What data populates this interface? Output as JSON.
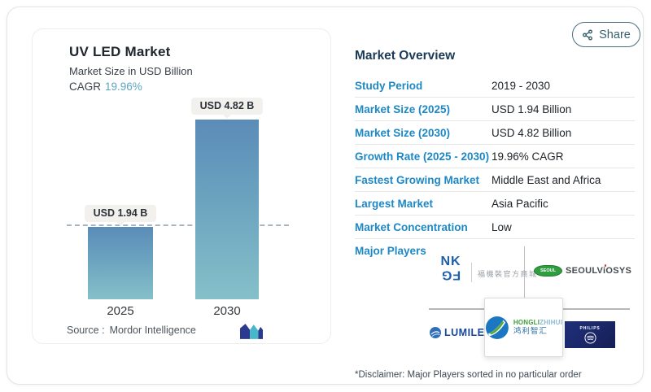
{
  "share": {
    "label": "Share"
  },
  "chart_card": {
    "title": "UV LED Market",
    "subtitle": "Market Size in USD Billion",
    "cagr_label": "CAGR",
    "cagr_value": "19.96%",
    "source_label": "Source :",
    "source_value": "Mordor Intelligence"
  },
  "chart_data": {
    "type": "bar",
    "title": "UV LED Market",
    "subtitle": "Market Size in USD Billion",
    "unit": "USD Billion",
    "categories": [
      "2025",
      "2030"
    ],
    "values": [
      1.94,
      4.82
    ],
    "bar_labels": [
      "USD 1.94 B",
      "USD 4.82 B"
    ],
    "reference_line_value": 1.94,
    "ylim": [
      0,
      5.5
    ],
    "grid": false,
    "legend": false,
    "bar_gradient_top": "#5b8cb8",
    "bar_gradient_bottom": "#85c0c9"
  },
  "overview": {
    "heading": "Market Overview",
    "rows": [
      {
        "label": "Study Period",
        "value": "2019 - 2030"
      },
      {
        "label": "Market Size (2025)",
        "value": "USD 1.94 Billion"
      },
      {
        "label": "Market Size (2030)",
        "value": "USD 4.82 Billion"
      },
      {
        "label": "Growth Rate (2025 - 2030)",
        "value": "19.96% CAGR"
      },
      {
        "label": "Fastest Growing Market",
        "value": "Middle East and Africa"
      },
      {
        "label": "Largest Market",
        "value": "Asia Pacific"
      },
      {
        "label": "Market Concentration",
        "value": "Low"
      }
    ]
  },
  "major_players": {
    "heading": "Major Players",
    "nkfg": {
      "top": "NK",
      "bottom": "FG",
      "caption": "福機裝官方商城"
    },
    "seoul_viosys": {
      "badge": "SEOUL",
      "part1": "SEOUL",
      "part2": "V",
      "part3": "i",
      "part4": "OSYS"
    },
    "lumileds": {
      "text": "LUMILEDS"
    },
    "hongli": {
      "en_primary": "HONGLI",
      "en_secondary": "ZHIHUI",
      "cn": "鸿利智汇"
    },
    "philips": {
      "text": "PHILIPS"
    },
    "disclaimer": "*Disclaimer: Major Players sorted in no particular order"
  },
  "colors": {
    "accent_blue": "#1e88c5",
    "heading_navy": "#1c3a55",
    "cagr_teal": "#5ba6c2",
    "share_teal": "#35606f",
    "divider_gray": "#e7e7e7"
  }
}
